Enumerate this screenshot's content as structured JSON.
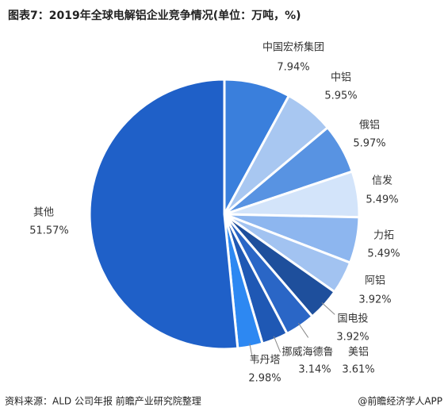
{
  "chart_data": {
    "type": "pie",
    "title": "图表7：2019年全球电解铝企业竞争情况(单位：万吨，%)",
    "categories": [
      "中国宏桥集团",
      "中铝",
      "俄铝",
      "信发",
      "力拓",
      "阿铝",
      "国电投",
      "美铝",
      "挪威海德鲁",
      "韦丹塔",
      "其他"
    ],
    "values": [
      7.94,
      5.95,
      5.97,
      5.49,
      5.49,
      3.92,
      3.92,
      3.61,
      3.14,
      2.98,
      51.57
    ],
    "value_labels": [
      "7.94%",
      "5.95%",
      "5.97%",
      "5.49%",
      "5.49%",
      "3.92%",
      "3.92%",
      "3.61%",
      "3.14%",
      "2.98%",
      "51.57%"
    ],
    "colors": [
      "#3a7fdc",
      "#a8c7f1",
      "#5893e2",
      "#d3e4fa",
      "#8db6ef",
      "#a2c3f1",
      "#1e4f9c",
      "#2a66c6",
      "#1f58b4",
      "#2d88f2",
      "#1f60c8"
    ],
    "source": "资料来源：ALD 公司年报 前瞻产业研究院整理",
    "credit": "@前瞻经济学人APP"
  }
}
